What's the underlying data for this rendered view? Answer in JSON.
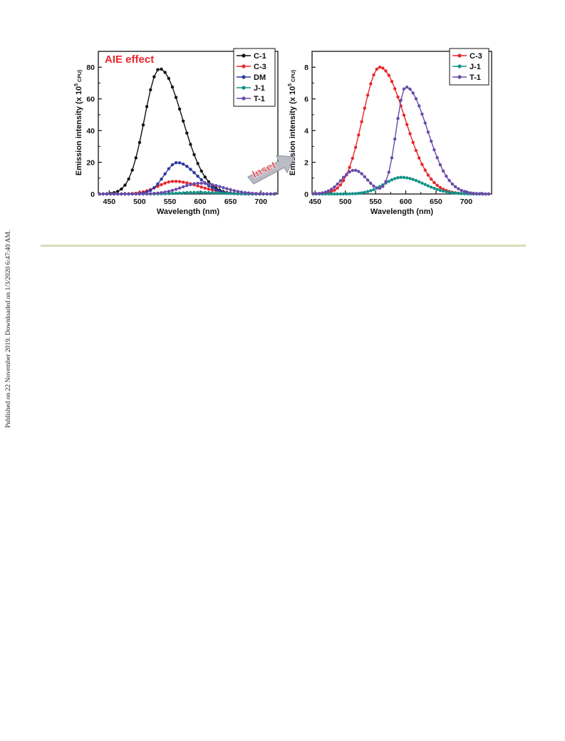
{
  "side_note": "Published on 22 November 2019. Downloaded on 1/3/2020 6:47:40 AM.",
  "colors": {
    "C-1": "#111111",
    "C-3": "#e8262c",
    "DM": "#2b3a9e",
    "J-1": "#13928a",
    "T-1": "#6a4ba8",
    "inset_arrow": "#b9bcc4",
    "inset_text": "#e8262c"
  },
  "chart_data": [
    {
      "type": "line",
      "title": "",
      "annotation": "AIE effect",
      "xlabel": "Wavelength (nm)",
      "ylabel": "Emission intensity (x 10^5 CPU)",
      "ylabel_parts": {
        "main": "Emission intensity (x 10",
        "sup": "5",
        "sub": " CPU)"
      },
      "xlim": [
        432,
        728
      ],
      "ylim": [
        0,
        90
      ],
      "xticks": [
        450,
        500,
        550,
        600,
        650,
        700
      ],
      "yticks": [
        0,
        20,
        40,
        60,
        80
      ],
      "grid": false,
      "legend_position": "top-right",
      "series": [
        {
          "name": "C-1",
          "peak_x": 533,
          "peak_y": 79,
          "width_left": 35,
          "width_right": 53
        },
        {
          "name": "C-3",
          "peak_x": 557,
          "peak_y": 8,
          "width_left": 38,
          "width_right": 58
        },
        {
          "name": "DM",
          "peak_x": 562,
          "peak_y": 19.8,
          "width_left": 30,
          "width_right": 45
        },
        {
          "name": "J-1",
          "peak_x": 595,
          "peak_y": 1.0,
          "width_left": 40,
          "width_right": 50
        },
        {
          "name": "T-1",
          "peak_x": 600,
          "peak_y": 6.8,
          "width_left": 44,
          "width_right": 52
        }
      ]
    },
    {
      "type": "line",
      "title": "",
      "xlabel": "Wavelength (nm)",
      "ylabel": "Emission intensity (x 10^5 CPU)",
      "ylabel_parts": {
        "main": "Emission intensity (x 10",
        "sup": "5",
        "sub": " CPU)"
      },
      "xlim": [
        445,
        742
      ],
      "ylim": [
        0,
        9
      ],
      "xticks": [
        450,
        500,
        550,
        600,
        650,
        700
      ],
      "yticks": [
        0,
        2,
        4,
        6,
        8
      ],
      "grid": false,
      "legend_position": "top-right",
      "series": [
        {
          "name": "C-3",
          "peak_x": 557,
          "peak_y": 8.0,
          "width_left": 40,
          "width_right": 58
        },
        {
          "name": "J-1",
          "peak_x": 593,
          "peak_y": 1.05,
          "width_left": 40,
          "width_right": 52
        },
        {
          "name": "T-1",
          "peak_x": 600,
          "peak_y": 6.75,
          "width_left": 22,
          "width_right": 50,
          "shoulder_x": 515,
          "shoulder_y": 1.5,
          "shoulder_w": 30
        }
      ]
    }
  ],
  "inset_label": "Inset"
}
